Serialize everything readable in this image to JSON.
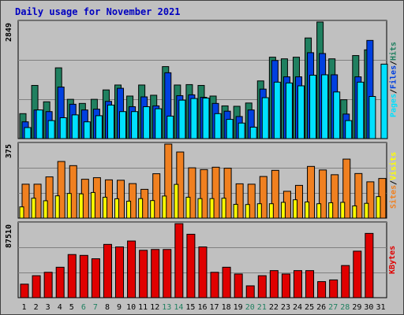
{
  "title": "Daily usage for November 2021",
  "colors": {
    "background": "#c0c0c0",
    "title": "#0000c0",
    "pages": "#00e0ff",
    "files": "#0040e0",
    "hits": "#208060",
    "sites": "#f08020",
    "visits": "#ffff00",
    "kbytes": "#e00000",
    "weekend_day": "#208060",
    "weekday": "#000000"
  },
  "chart_data": [
    {
      "type": "bar",
      "panel": "hits-files-pages",
      "max_label": "2849",
      "ylim": [
        0,
        2849
      ],
      "grid": true,
      "labels": [
        "Pages",
        "Files",
        "Hits"
      ],
      "x": [
        1,
        2,
        3,
        4,
        5,
        6,
        7,
        8,
        9,
        10,
        11,
        12,
        13,
        14,
        15,
        16,
        17,
        18,
        19,
        20,
        21,
        22,
        23,
        24,
        25,
        26,
        27,
        28,
        29,
        30,
        31
      ],
      "series": [
        {
          "name": "Hits",
          "color": "#208060",
          "values": [
            610,
            1300,
            900,
            1730,
            960,
            860,
            960,
            1190,
            1310,
            1040,
            1310,
            1060,
            1760,
            1310,
            1320,
            1300,
            1040,
            800,
            790,
            870,
            1410,
            1990,
            1950,
            1990,
            2460,
            2850,
            1950,
            950,
            2030,
            2170,
            0
          ]
        },
        {
          "name": "Files",
          "color": "#0040e0",
          "values": [
            410,
            700,
            660,
            1260,
            840,
            700,
            720,
            910,
            1230,
            780,
            1020,
            800,
            1610,
            1050,
            1070,
            1010,
            860,
            670,
            540,
            700,
            1210,
            1910,
            1510,
            1510,
            2100,
            2080,
            1560,
            600,
            1510,
            2400,
            0
          ]
        },
        {
          "name": "Pages",
          "color": "#00e0ff",
          "values": [
            270,
            700,
            440,
            510,
            580,
            410,
            560,
            820,
            660,
            660,
            780,
            730,
            550,
            940,
            980,
            990,
            610,
            470,
            380,
            280,
            1000,
            1380,
            1360,
            1290,
            1550,
            1560,
            1140,
            440,
            1380,
            1030,
            1820
          ]
        }
      ]
    },
    {
      "type": "bar",
      "panel": "visits-sites",
      "max_label": "375",
      "ylim": [
        0,
        375
      ],
      "grid": true,
      "labels": [
        "Sites",
        "Visits"
      ],
      "x": [
        1,
        2,
        3,
        4,
        5,
        6,
        7,
        8,
        9,
        10,
        11,
        12,
        13,
        14,
        15,
        16,
        17,
        18,
        19,
        20,
        21,
        22,
        23,
        24,
        25,
        26,
        27,
        28,
        29,
        30,
        31
      ],
      "series": [
        {
          "name": "Sites",
          "color": "#f08020",
          "values": [
            172,
            172,
            209,
            287,
            266,
            197,
            205,
            194,
            192,
            175,
            146,
            225,
            375,
            335,
            255,
            246,
            258,
            253,
            174,
            172,
            211,
            242,
            136,
            166,
            262,
            244,
            220,
            299,
            226,
            184,
            201
          ]
        },
        {
          "name": "Visits",
          "color": "#ffff00",
          "values": [
            57,
            101,
            88,
            113,
            125,
            123,
            130,
            106,
            98,
            86,
            99,
            89,
            112,
            171,
            106,
            99,
            99,
            101,
            70,
            69,
            73,
            73,
            80,
            93,
            82,
            73,
            78,
            80,
            62,
            75,
            109
          ]
        }
      ]
    },
    {
      "type": "bar",
      "panel": "kbytes",
      "max_label": "87510",
      "ylim": [
        0,
        87510
      ],
      "grid": true,
      "labels": [
        "KBytes"
      ],
      "x": [
        1,
        2,
        3,
        4,
        5,
        6,
        7,
        8,
        9,
        10,
        11,
        12,
        13,
        14,
        15,
        16,
        17,
        18,
        19,
        20,
        21,
        22,
        23,
        24,
        25,
        26,
        27,
        28,
        29,
        30,
        31
      ],
      "series": [
        {
          "name": "KBytes",
          "color": "#e00000",
          "values": [
            16000,
            26000,
            30000,
            36000,
            51000,
            50000,
            46000,
            63000,
            60000,
            67000,
            56000,
            57000,
            57000,
            87510,
            75000,
            60000,
            30000,
            36000,
            28000,
            14000,
            26000,
            32000,
            28000,
            32000,
            32000,
            19000,
            21000,
            38000,
            55000,
            76000,
            0
          ]
        }
      ]
    }
  ],
  "days": [
    {
      "label": "1",
      "weekend": false
    },
    {
      "label": "2",
      "weekend": false
    },
    {
      "label": "3",
      "weekend": false
    },
    {
      "label": "4",
      "weekend": false
    },
    {
      "label": "5",
      "weekend": false
    },
    {
      "label": "6",
      "weekend": true
    },
    {
      "label": "7",
      "weekend": true
    },
    {
      "label": "8",
      "weekend": false
    },
    {
      "label": "9",
      "weekend": false
    },
    {
      "label": "10",
      "weekend": false
    },
    {
      "label": "11",
      "weekend": false
    },
    {
      "label": "12",
      "weekend": false
    },
    {
      "label": "13",
      "weekend": true
    },
    {
      "label": "14",
      "weekend": true
    },
    {
      "label": "15",
      "weekend": false
    },
    {
      "label": "16",
      "weekend": false
    },
    {
      "label": "17",
      "weekend": false
    },
    {
      "label": "18",
      "weekend": false
    },
    {
      "label": "19",
      "weekend": false
    },
    {
      "label": "20",
      "weekend": true
    },
    {
      "label": "21",
      "weekend": true
    },
    {
      "label": "22",
      "weekend": false
    },
    {
      "label": "23",
      "weekend": false
    },
    {
      "label": "24",
      "weekend": false
    },
    {
      "label": "25",
      "weekend": false
    },
    {
      "label": "26",
      "weekend": false
    },
    {
      "label": "27",
      "weekend": true
    },
    {
      "label": "28",
      "weekend": true
    },
    {
      "label": "29",
      "weekend": false
    },
    {
      "label": "30",
      "weekend": false
    },
    {
      "label": "31",
      "weekend": false
    }
  ],
  "separator": "/"
}
